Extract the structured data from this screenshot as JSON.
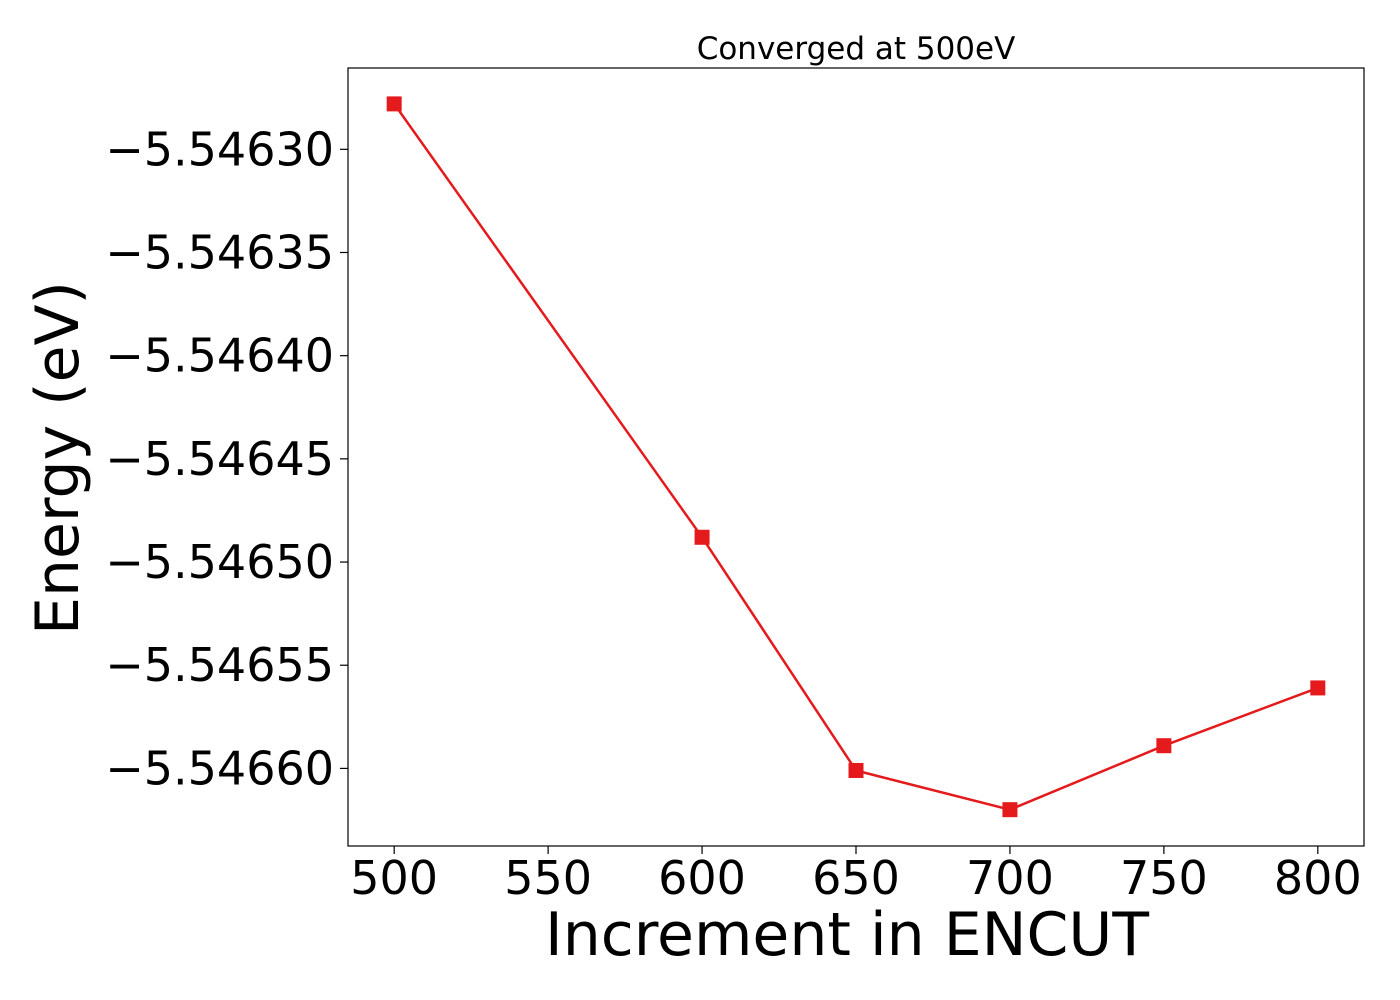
{
  "chart_data": {
    "type": "line",
    "title": "Converged at 500eV",
    "xlabel": "Increment in ENCUT",
    "ylabel": "Energy (eV)",
    "x": [
      500,
      600,
      650,
      700,
      750,
      800
    ],
    "series": [
      {
        "values": [
          -5.546278,
          -5.546488,
          -5.546601,
          -5.54662,
          -5.546589,
          -5.546561
        ],
        "color": "#e41a1c",
        "marker": "square"
      }
    ],
    "xlim": [
      485,
      815
    ],
    "ylim": [
      -5.5466376,
      -5.5462606
    ],
    "xticks": [
      500,
      550,
      600,
      650,
      700,
      750,
      800
    ],
    "xtick_labels": [
      "500",
      "550",
      "600",
      "650",
      "700",
      "750",
      "800"
    ],
    "yticks": [
      -5.5463,
      -5.54635,
      -5.5464,
      -5.54645,
      -5.5465,
      -5.54655,
      -5.5466
    ],
    "ytick_labels": [
      "−5.54630",
      "−5.54635",
      "−5.54640",
      "−5.54645",
      "−5.54650",
      "−5.54655",
      "−5.54660"
    ],
    "grid": false,
    "legend": false
  }
}
